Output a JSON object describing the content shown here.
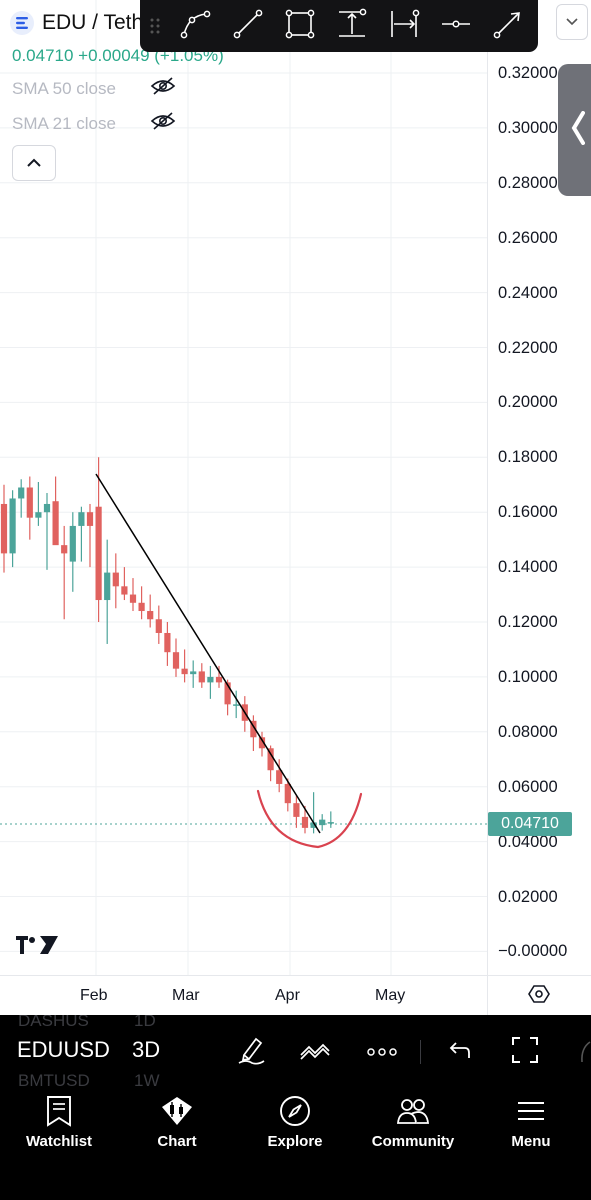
{
  "header": {
    "title": "EDU / Teth",
    "price_line": "0.04710 +0.00049 (+1.05%)",
    "indicators": [
      {
        "label": "SMA 50 close",
        "icon": "eye-hidden-icon"
      },
      {
        "label": "SMA 21 close",
        "icon": "eye-hidden-icon"
      }
    ]
  },
  "drawing_toolbar": {
    "tools": [
      "path-icon",
      "trendline-icon",
      "rectangle-icon",
      "price-range-icon",
      "date-range-icon",
      "horizontal-ray-icon",
      "arrow-icon"
    ]
  },
  "price_axis": {
    "labels": [
      "0.32000",
      "0.30000",
      "0.28000",
      "0.26000",
      "0.24000",
      "0.22000",
      "0.20000",
      "0.18000",
      "0.16000",
      "0.14000",
      "0.12000",
      "0.10000",
      "0.08000",
      "0.06000",
      "0.04000",
      "0.02000",
      "−0.00000"
    ],
    "current_price": "0.04710"
  },
  "time_axis": {
    "labels": [
      "Feb",
      "Mar",
      "Apr",
      "May"
    ]
  },
  "chart_data": {
    "type": "candlestick",
    "symbol": "EDU / Teth",
    "ylim": [
      -0.002,
      0.322
    ],
    "last_price": 0.0471,
    "colors": {
      "up": "#4ca49a",
      "down": "#e0625f",
      "trendline": "#000000",
      "annotation": "#d9434f"
    },
    "candles": [
      {
        "o": 0.163,
        "h": 0.17,
        "l": 0.138,
        "c": 0.145
      },
      {
        "o": 0.145,
        "h": 0.168,
        "l": 0.14,
        "c": 0.165
      },
      {
        "o": 0.165,
        "h": 0.172,
        "l": 0.158,
        "c": 0.169
      },
      {
        "o": 0.169,
        "h": 0.173,
        "l": 0.15,
        "c": 0.158
      },
      {
        "o": 0.158,
        "h": 0.171,
        "l": 0.155,
        "c": 0.16
      },
      {
        "o": 0.16,
        "h": 0.167,
        "l": 0.139,
        "c": 0.163
      },
      {
        "o": 0.164,
        "h": 0.173,
        "l": 0.15,
        "c": 0.148
      },
      {
        "o": 0.148,
        "h": 0.155,
        "l": 0.121,
        "c": 0.145
      },
      {
        "o": 0.142,
        "h": 0.16,
        "l": 0.131,
        "c": 0.155
      },
      {
        "o": 0.155,
        "h": 0.162,
        "l": 0.142,
        "c": 0.16
      },
      {
        "o": 0.16,
        "h": 0.163,
        "l": 0.14,
        "c": 0.155
      },
      {
        "o": 0.162,
        "h": 0.18,
        "l": 0.12,
        "c": 0.128
      },
      {
        "o": 0.128,
        "h": 0.15,
        "l": 0.112,
        "c": 0.138
      },
      {
        "o": 0.138,
        "h": 0.145,
        "l": 0.125,
        "c": 0.133
      },
      {
        "o": 0.133,
        "h": 0.14,
        "l": 0.128,
        "c": 0.13
      },
      {
        "o": 0.13,
        "h": 0.136,
        "l": 0.124,
        "c": 0.127
      },
      {
        "o": 0.127,
        "h": 0.133,
        "l": 0.121,
        "c": 0.124
      },
      {
        "o": 0.124,
        "h": 0.13,
        "l": 0.118,
        "c": 0.121
      },
      {
        "o": 0.121,
        "h": 0.126,
        "l": 0.112,
        "c": 0.116
      },
      {
        "o": 0.116,
        "h": 0.12,
        "l": 0.104,
        "c": 0.109
      },
      {
        "o": 0.109,
        "h": 0.114,
        "l": 0.1,
        "c": 0.103
      },
      {
        "o": 0.103,
        "h": 0.11,
        "l": 0.098,
        "c": 0.101
      },
      {
        "o": 0.101,
        "h": 0.106,
        "l": 0.096,
        "c": 0.102
      },
      {
        "o": 0.102,
        "h": 0.105,
        "l": 0.096,
        "c": 0.098
      },
      {
        "o": 0.098,
        "h": 0.104,
        "l": 0.092,
        "c": 0.1
      },
      {
        "o": 0.1,
        "h": 0.104,
        "l": 0.096,
        "c": 0.098
      },
      {
        "o": 0.098,
        "h": 0.099,
        "l": 0.086,
        "c": 0.09
      },
      {
        "o": 0.09,
        "h": 0.095,
        "l": 0.085,
        "c": 0.09
      },
      {
        "o": 0.09,
        "h": 0.093,
        "l": 0.08,
        "c": 0.084
      },
      {
        "o": 0.084,
        "h": 0.086,
        "l": 0.073,
        "c": 0.078
      },
      {
        "o": 0.078,
        "h": 0.08,
        "l": 0.071,
        "c": 0.074
      },
      {
        "o": 0.074,
        "h": 0.075,
        "l": 0.062,
        "c": 0.066
      },
      {
        "o": 0.066,
        "h": 0.07,
        "l": 0.058,
        "c": 0.061
      },
      {
        "o": 0.061,
        "h": 0.063,
        "l": 0.051,
        "c": 0.054
      },
      {
        "o": 0.054,
        "h": 0.057,
        "l": 0.045,
        "c": 0.049
      },
      {
        "o": 0.049,
        "h": 0.053,
        "l": 0.043,
        "c": 0.045
      },
      {
        "o": 0.045,
        "h": 0.058,
        "l": 0.043,
        "c": 0.047
      },
      {
        "o": 0.046,
        "h": 0.05,
        "l": 0.044,
        "c": 0.048
      },
      {
        "o": 0.047,
        "h": 0.051,
        "l": 0.045,
        "c": 0.0471
      }
    ]
  },
  "chart_toolbar": {
    "symbol": "EDUUSD",
    "timeframe": "3D",
    "ghost_above": [
      "DASHUS",
      "1D"
    ],
    "ghost_below": [
      "BMTUSD",
      "1W"
    ]
  },
  "tabbar": {
    "tabs": [
      {
        "label": "Watchlist",
        "icon": "watchlist-icon"
      },
      {
        "label": "Chart",
        "icon": "chart-icon"
      },
      {
        "label": "Explore",
        "icon": "compass-icon"
      },
      {
        "label": "Community",
        "icon": "community-icon"
      },
      {
        "label": "Menu",
        "icon": "hamburger-icon"
      }
    ]
  }
}
